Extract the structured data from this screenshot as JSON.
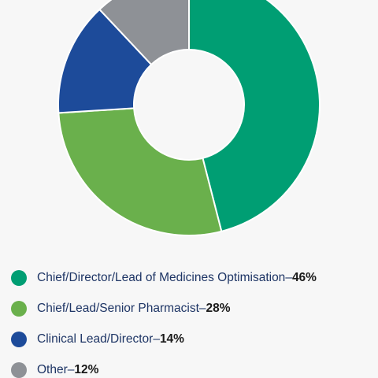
{
  "chart_data": {
    "type": "pie",
    "categories": [
      "Chief/Director/Lead of Medicines Optimisation",
      "Chief/Lead/Senior Pharmacist",
      "Clinical Lead/Director",
      "Other"
    ],
    "values": [
      46,
      28,
      14,
      12
    ],
    "value_labels": [
      "46%",
      "28%",
      "14%",
      "12%"
    ],
    "colors": [
      "#009e73",
      "#6ab04c",
      "#1d4b9a",
      "#8e9196"
    ],
    "separator": " – ",
    "donut": true,
    "legend_position": "bottom"
  }
}
